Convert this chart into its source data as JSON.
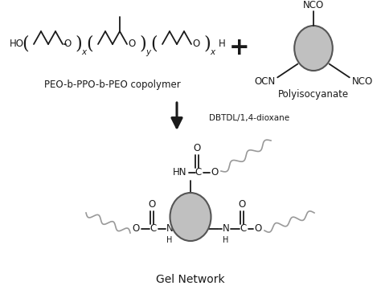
{
  "bg_color": "#ffffff",
  "text_color": "#1a1a1a",
  "gray_fill": "#c0c0c0",
  "gray_edge": "#555555",
  "label_peo": "PEO-b-PPO-b-PEO copolymer",
  "label_poly": "Polyisocyanate",
  "label_gel": "Gel Network",
  "label_reagent": "DBTDL/1,4-dioxane",
  "figsize": [
    4.74,
    3.76
  ],
  "dpi": 100
}
